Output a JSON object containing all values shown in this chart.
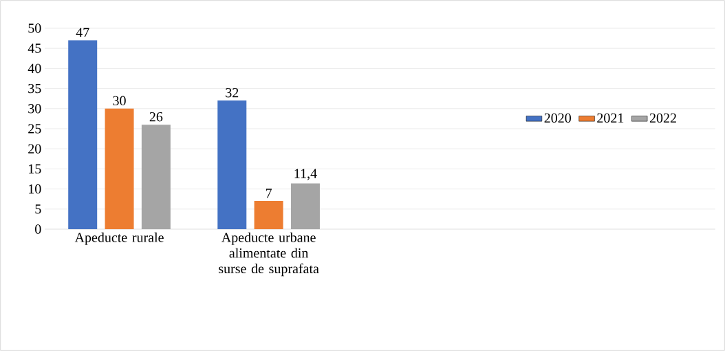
{
  "chart_data": {
    "type": "bar",
    "categories": [
      "Apeducte rurale",
      "Apeducte urbane alimentate din surse de suprafata"
    ],
    "series": [
      {
        "name": "2020",
        "color": "#4472c4",
        "values": [
          47,
          32
        ],
        "value_labels": [
          "47",
          "32"
        ]
      },
      {
        "name": "2021",
        "color": "#ed7d31",
        "values": [
          30,
          7
        ],
        "value_labels": [
          "30",
          "7"
        ]
      },
      {
        "name": "2022",
        "color": "#a5a5a5",
        "values": [
          26,
          11.4
        ],
        "value_labels": [
          "26",
          "11,4"
        ]
      }
    ],
    "ylim": [
      0,
      50
    ],
    "yticks": [
      0,
      5,
      10,
      15,
      20,
      25,
      30,
      35,
      40,
      45,
      50
    ],
    "grid": "y",
    "legend": "right"
  }
}
